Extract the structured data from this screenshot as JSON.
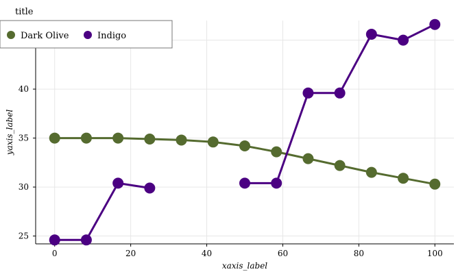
{
  "chart_data": {
    "type": "line",
    "title": "title",
    "xlabel": "xaxis_label",
    "ylabel": "yaxis_label",
    "xlim": [
      -5,
      105
    ],
    "ylim": [
      24.2,
      47.0
    ],
    "xticks": [
      0,
      20,
      40,
      60,
      80,
      100
    ],
    "yticks": [
      25,
      30,
      35,
      40,
      45
    ],
    "grid": true,
    "legend": "top-left",
    "x": [
      0,
      8.33,
      16.67,
      25,
      33.33,
      41.67,
      50,
      58.33,
      66.67,
      75,
      83.33,
      91.67,
      100
    ],
    "series": [
      {
        "name": "Dark Olive",
        "color": "#556b2f",
        "values": [
          35.0,
          35.0,
          35.0,
          34.9,
          34.8,
          34.6,
          34.2,
          33.6,
          32.9,
          32.2,
          31.5,
          30.9,
          30.3
        ]
      },
      {
        "name": "Indigo",
        "color": "#4b0082",
        "values": [
          24.6,
          24.6,
          30.4,
          29.9,
          null,
          null,
          30.4,
          30.4,
          39.6,
          39.6,
          45.6,
          45.0,
          46.6
        ]
      }
    ]
  }
}
